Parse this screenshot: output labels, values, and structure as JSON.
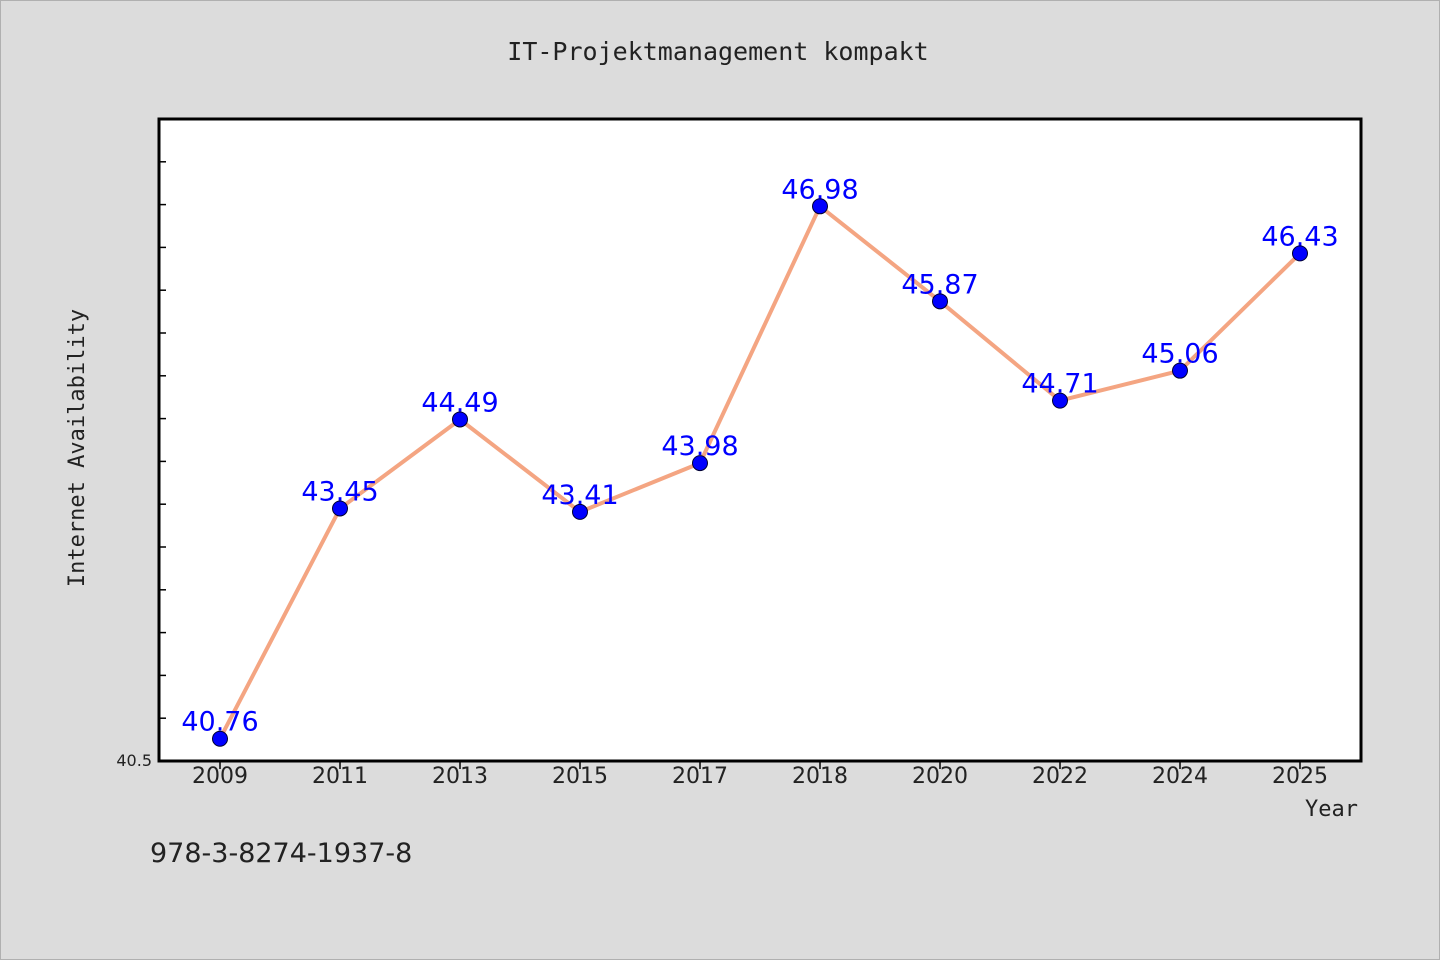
{
  "chart_data": {
    "type": "line",
    "title": "IT-Projektmanagement kompakt",
    "xlabel": "Year",
    "ylabel": "Internet Availability",
    "categories": [
      "2009",
      "2011",
      "2013",
      "2015",
      "2017",
      "2018",
      "2020",
      "2022",
      "2024",
      "2025"
    ],
    "values": [
      40.76,
      43.45,
      44.49,
      43.41,
      43.98,
      46.98,
      45.87,
      44.71,
      45.06,
      46.43
    ],
    "data_labels": [
      "40.76",
      "43.45",
      "44.49",
      "43.41",
      "43.98",
      "46.98",
      "45.87",
      "44.71",
      "45.06",
      "46.43"
    ],
    "ylim": [
      40.5,
      48.0
    ],
    "y_tick_label": "40.5",
    "grid": false,
    "legend": "none",
    "footer_text": "978-3-8274-1937-8",
    "colors": {
      "line": "#f4a582",
      "marker": "#0000ff",
      "data_label": "#0000ff",
      "background": "#dcdcdc",
      "plot_background": "#ffffff",
      "text": "#222222"
    }
  }
}
